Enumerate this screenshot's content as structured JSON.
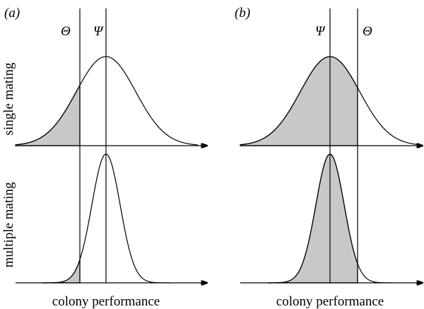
{
  "panels": [
    {
      "label": "(a)",
      "threshold": "Θ",
      "optimum": "Ψ",
      "x_axis_label": "colony performance"
    },
    {
      "label": "(b)",
      "threshold": "Θ",
      "optimum": "Ψ",
      "x_axis_label": "colony performance"
    }
  ],
  "rows": [
    "single mating",
    "multiple mating"
  ]
}
